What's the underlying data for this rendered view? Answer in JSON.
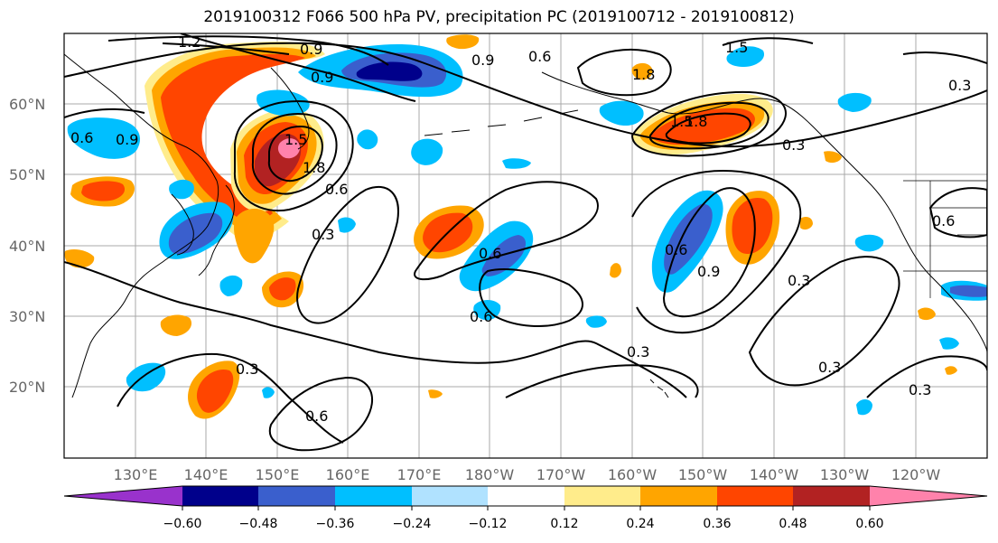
{
  "title": "2019100312 F066 500 hPa PV, precipitation PC (2019100712 - 2019100812)",
  "lat_labels": [
    "60°N",
    "50°N",
    "40°N",
    "30°N",
    "20°N"
  ],
  "lon_labels": [
    "130°E",
    "140°E",
    "150°E",
    "160°E",
    "170°E",
    "180°W",
    "170°W",
    "160°W",
    "150°W",
    "140°W",
    "130°W",
    "120°W"
  ],
  "contour_labels": [
    "1.2",
    "0.9",
    "0.9",
    "0.6",
    "0.9",
    "1.5",
    "1.8",
    "1.5",
    "1.8",
    "0.3",
    "1.5",
    "1.8",
    "0.6",
    "0.6",
    "0.3",
    "0.6",
    "0.6",
    "0.9",
    "0.3",
    "0.3",
    "0.3",
    "0.3",
    "0.3",
    "0.6",
    "0.9",
    "0.6",
    "0.6",
    "0.3"
  ],
  "colorbar": {
    "colors": [
      "#9932cc",
      "#00008b",
      "#3a5fcd",
      "#00bfff",
      "#b0e2ff",
      "#ffffff",
      "#ffffff",
      "#ffec8b",
      "#ffa500",
      "#ff4500",
      "#b22222",
      "#ff82ab"
    ],
    "tick_labels": [
      "−0.60",
      "−0.48",
      "−0.36",
      "−0.24",
      "−0.12",
      "0.12",
      "0.24",
      "0.36",
      "0.48",
      "0.60"
    ]
  },
  "colors": {
    "coast": "#000000",
    "grid": "#a9a9a9",
    "contour": "#000000"
  }
}
